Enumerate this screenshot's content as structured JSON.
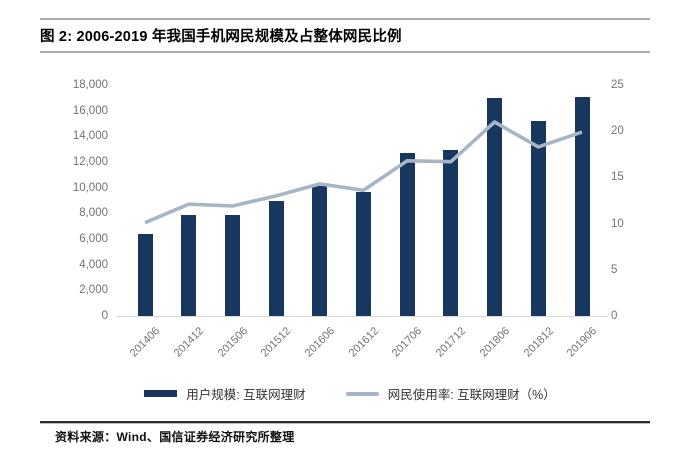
{
  "header": {
    "title": "图 2:  2006-2019 年我国手机网民规模及占整体网民比例"
  },
  "footer": {
    "source": "资料来源：Wind、国信证券经济研究所整理"
  },
  "chart_data": {
    "type": "bar",
    "subtype": "bar-and-line-dual-axis",
    "title": "图 2: 2006-2019 年我国手机网民规模及占整体网民比例",
    "categories": [
      "201406",
      "201412",
      "201506",
      "201512",
      "201606",
      "201612",
      "201706",
      "201712",
      "201806",
      "201812",
      "201906"
    ],
    "series": [
      {
        "name": "用户规模: 互联网理财",
        "type": "bar",
        "axis": "left",
        "color": "#17375E",
        "values": [
          6400,
          7900,
          7900,
          9000,
          10150,
          9700,
          12700,
          12950,
          16950,
          15200,
          17050
        ]
      },
      {
        "name": "网民使用率: 互联网理财（%）",
        "type": "line",
        "axis": "right",
        "color": "#A7B6C7",
        "values": [
          10.1,
          12.1,
          11.9,
          13.0,
          14.3,
          13.6,
          16.8,
          16.7,
          21.0,
          18.3,
          19.9
        ]
      }
    ],
    "left_axis": {
      "min": 0,
      "max": 18000,
      "step": 2000,
      "ticks": [
        "0",
        "2,000",
        "4,000",
        "6,000",
        "8,000",
        "10,000",
        "12,000",
        "14,000",
        "16,000",
        "18,000"
      ]
    },
    "right_axis": {
      "min": 0,
      "max": 25,
      "step": 5,
      "ticks": [
        "0",
        "5",
        "10",
        "15",
        "20",
        "25"
      ]
    },
    "grid": false,
    "legend_position": "bottom"
  }
}
